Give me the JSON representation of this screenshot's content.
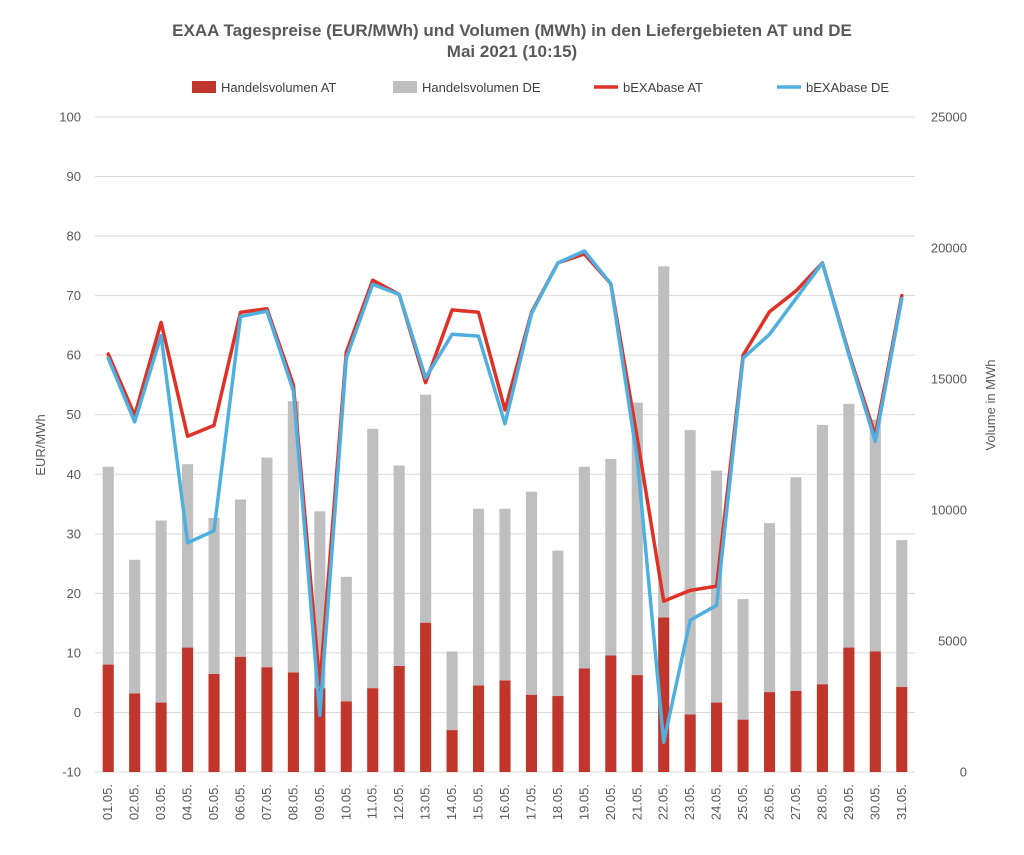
{
  "chart_data": {
    "type": "bar+line",
    "title": "EXAA Tagespreise (EUR/MWh) und Volumen (MWh) in den Liefergebieten AT und DE",
    "subtitle": "Mai 2021 (10:15)",
    "ylabel_left": "EUR/MWh",
    "ylabel_right": "Volume in MWh",
    "ylim_left": [
      -10,
      100
    ],
    "ylim_right": [
      0,
      25000
    ],
    "yticks_left": [
      "-10",
      "0",
      "10",
      "20",
      "30",
      "40",
      "50",
      "60",
      "70",
      "80",
      "90",
      "100"
    ],
    "yticks_right": [
      "0",
      "5000",
      "10000",
      "15000",
      "20000",
      "25000"
    ],
    "grid": true,
    "legend_position": "top",
    "categories": [
      "01.05.",
      "02.05.",
      "03.05.",
      "04.05.",
      "05.05.",
      "06.05.",
      "07.05.",
      "08.05.",
      "09.05.",
      "10.05.",
      "11.05.",
      "12.05.",
      "13.05.",
      "14.05.",
      "15.05.",
      "16.05.",
      "17.05.",
      "18.05.",
      "19.05.",
      "20.05.",
      "21.05.",
      "22.05.",
      "23.05.",
      "24.05.",
      "25.05.",
      "26.05.",
      "27.05.",
      "28.05.",
      "29.05.",
      "30.05.",
      "31.05."
    ],
    "series": [
      {
        "name": "Handelsvolumen AT",
        "kind": "bar",
        "axis": "right",
        "color": "#C0362C",
        "values": [
          4100,
          3000,
          2650,
          4750,
          3750,
          4400,
          4000,
          3800,
          3200,
          2700,
          3200,
          4050,
          5700,
          1600,
          3300,
          3500,
          2950,
          2900,
          3950,
          4450,
          3700,
          5900,
          2200,
          2650,
          2000,
          3050,
          3100,
          3350,
          4750,
          4600,
          3250
        ]
      },
      {
        "name": "Handelsvolumen DE",
        "kind": "bar",
        "axis": "right",
        "color": "#BFBFBF",
        "values": [
          7550,
          5100,
          6950,
          7000,
          5950,
          6000,
          8000,
          10350,
          6750,
          4750,
          9900,
          7650,
          8700,
          3000,
          6750,
          6550,
          7750,
          5550,
          7700,
          7500,
          10400,
          13400,
          10850,
          8850,
          4600,
          6450,
          8150,
          9900,
          9300,
          8850,
          5600
        ]
      },
      {
        "name": "bEXAbase AT",
        "kind": "line",
        "axis": "left",
        "color": "#E03127",
        "values": [
          60.2,
          49.9,
          65.5,
          46.4,
          48.2,
          67.2,
          67.8,
          55.0,
          4.5,
          60.5,
          72.6,
          70.2,
          55.4,
          67.6,
          67.2,
          50.8,
          67.2,
          75.5,
          77.0,
          72.0,
          46.0,
          18.7,
          20.5,
          21.2,
          60.0,
          67.3,
          70.8,
          75.5,
          60.3,
          46.5,
          70.0
        ]
      },
      {
        "name": "bEXAbase DE",
        "kind": "line",
        "axis": "left",
        "color": "#4FB0E0",
        "values": [
          59.5,
          48.8,
          63.3,
          28.5,
          30.5,
          66.5,
          67.4,
          54.0,
          -0.5,
          59.5,
          71.9,
          70.2,
          56.2,
          63.5,
          63.2,
          48.5,
          67.0,
          75.5,
          77.5,
          72.0,
          42.5,
          -5.0,
          15.5,
          18.0,
          59.5,
          63.5,
          69.5,
          75.5,
          60.0,
          45.5,
          69.5
        ]
      }
    ]
  }
}
